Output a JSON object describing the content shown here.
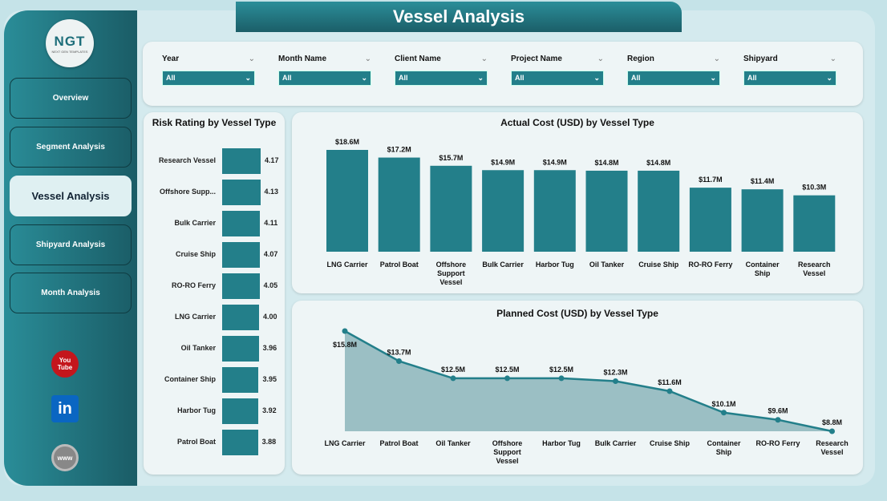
{
  "header": {
    "title": "Vessel Analysis"
  },
  "logo": {
    "text": "NGT",
    "subtext": "NEXT GEN TEMPLATES"
  },
  "sidebar": {
    "items": [
      {
        "label": "Overview"
      },
      {
        "label": "Segment Analysis"
      },
      {
        "label": "Vessel Analysis",
        "active": true
      },
      {
        "label": "Shipyard Analysis"
      },
      {
        "label": "Month Analysis"
      }
    ],
    "social": [
      {
        "icon": "youtube-icon",
        "text": "You Tube"
      },
      {
        "icon": "linkedin-icon",
        "text": "in"
      },
      {
        "icon": "globe-icon",
        "text": "www"
      }
    ]
  },
  "filters": [
    {
      "label": "Year",
      "value": "All"
    },
    {
      "label": "Month Name",
      "value": "All"
    },
    {
      "label": "Client Name",
      "value": "All"
    },
    {
      "label": "Project Name",
      "value": "All"
    },
    {
      "label": "Region",
      "value": "All"
    },
    {
      "label": "Shipyard",
      "value": "All"
    }
  ],
  "colors": {
    "accent": "#237f8a",
    "sidebar": "#1a5c66"
  },
  "chart_data": [
    {
      "type": "bar",
      "orientation": "horizontal",
      "title": "Risk Rating by Vessel Type",
      "categories": [
        "Research Vessel",
        "Offshore Supp...",
        "Bulk Carrier",
        "Cruise Ship",
        "RO-RO Ferry",
        "LNG Carrier",
        "Oil Tanker",
        "Container Ship",
        "Harbor Tug",
        "Patrol Boat"
      ],
      "values": [
        4.17,
        4.13,
        4.11,
        4.07,
        4.05,
        4.0,
        3.96,
        3.95,
        3.92,
        3.88
      ],
      "labels": [
        "4.17",
        "4.13",
        "4.11",
        "4.07",
        "4.05",
        "4.00",
        "3.96",
        "3.95",
        "3.92",
        "3.88"
      ]
    },
    {
      "type": "bar",
      "title": "Actual Cost (USD) by Vessel Type",
      "categories": [
        "LNG Carrier",
        "Patrol Boat",
        "Offshore Support Vessel",
        "Bulk Carrier",
        "Harbor Tug",
        "Oil Tanker",
        "Cruise Ship",
        "RO-RO Ferry",
        "Container Ship",
        "Research Vessel"
      ],
      "values": [
        18.6,
        17.2,
        15.7,
        14.9,
        14.9,
        14.8,
        14.8,
        11.7,
        11.4,
        10.3
      ],
      "labels": [
        "$18.6M",
        "$17.2M",
        "$15.7M",
        "$14.9M",
        "$14.9M",
        "$14.8M",
        "$14.8M",
        "$11.7M",
        "$11.4M",
        "$10.3M"
      ]
    },
    {
      "type": "area",
      "title": "Planned Cost (USD) by Vessel Type",
      "categories": [
        "LNG Carrier",
        "Patrol Boat",
        "Oil Tanker",
        "Offshore Support Vessel",
        "Harbor Tug",
        "Bulk Carrier",
        "Cruise Ship",
        "Container Ship",
        "RO-RO Ferry",
        "Research Vessel"
      ],
      "values": [
        15.8,
        13.7,
        12.5,
        12.5,
        12.5,
        12.3,
        11.6,
        10.1,
        9.6,
        8.8
      ],
      "labels": [
        "$15.8M",
        "$13.7M",
        "$12.5M",
        "$12.5M",
        "$12.5M",
        "$12.3M",
        "$11.6M",
        "$10.1M",
        "$9.6M",
        "$8.8M"
      ]
    }
  ]
}
